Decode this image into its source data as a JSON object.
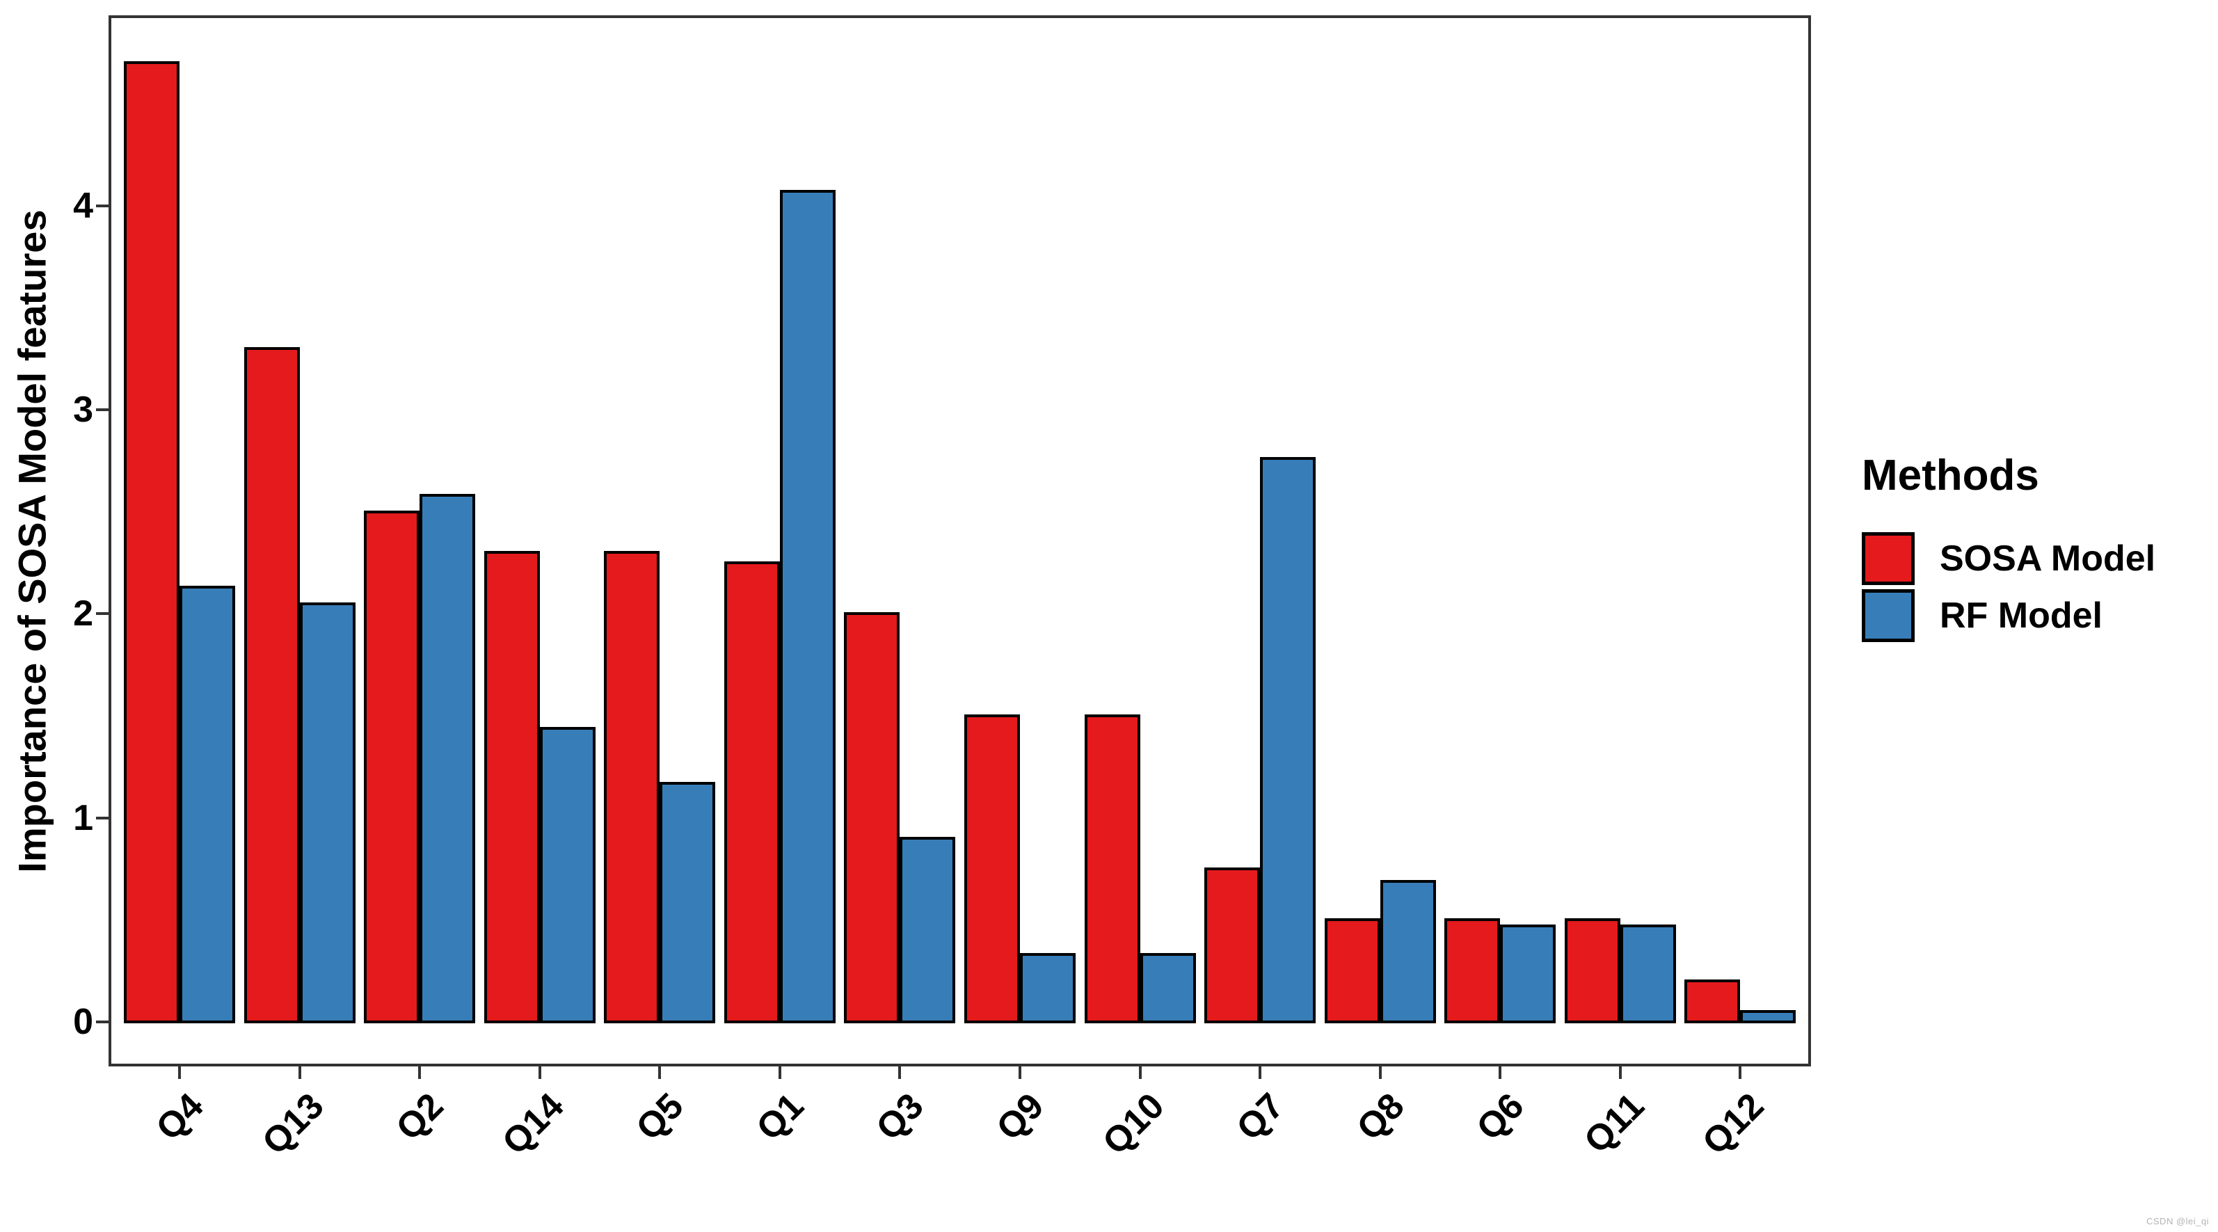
{
  "chart_data": {
    "type": "bar",
    "title": "",
    "xlabel": "",
    "ylabel": "Importance of SOSA Model features",
    "categories": [
      "Q4",
      "Q13",
      "Q2",
      "Q14",
      "Q5",
      "Q1",
      "Q3",
      "Q9",
      "Q10",
      "Q7",
      "Q8",
      "Q6",
      "Q11",
      "Q12"
    ],
    "series": [
      {
        "name": "SOSA Model",
        "color": "#E41A1C",
        "values": [
          4.7,
          3.3,
          2.5,
          2.3,
          2.3,
          2.25,
          2.0,
          1.5,
          1.5,
          0.75,
          0.5,
          0.5,
          0.5,
          0.2
        ]
      },
      {
        "name": "RF Model",
        "color": "#377EB8",
        "values": [
          2.13,
          2.05,
          2.58,
          1.44,
          1.17,
          4.07,
          0.9,
          0.33,
          0.33,
          2.76,
          0.69,
          0.47,
          0.47,
          0.05
        ]
      }
    ],
    "legend": {
      "title": "Methods",
      "position": "right"
    },
    "y_ticks": [
      0,
      1,
      2,
      3,
      4
    ],
    "ylim": [
      -0.22,
      4.95
    ],
    "grid": false,
    "bar_outline_color": "#000000"
  },
  "watermark": "CSDN @lei_qi"
}
